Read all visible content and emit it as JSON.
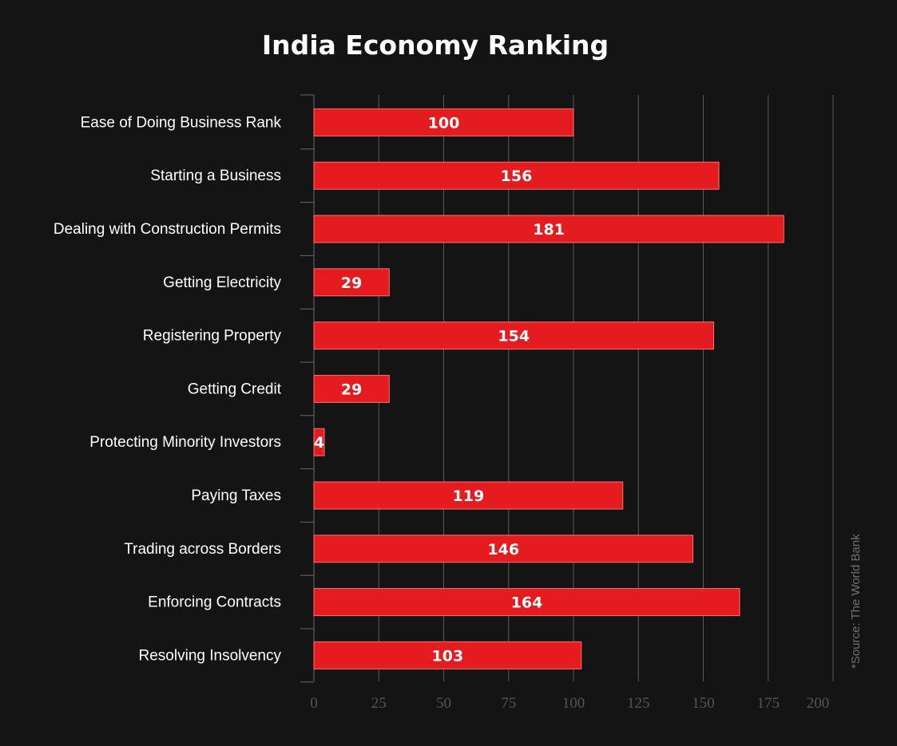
{
  "chart_data": {
    "type": "bar",
    "orientation": "horizontal",
    "title": "India Economy Ranking",
    "categories": [
      "Ease of Doing Business Rank",
      "Starting a Business",
      "Dealing with Construction Permits",
      "Getting Electricity",
      "Registering Property",
      "Getting Credit",
      "Protecting Minority Investors",
      "Paying Taxes",
      "Trading across Borders",
      "Enforcing Contracts",
      "Resolving Insolvency"
    ],
    "values": [
      100,
      156,
      181,
      29,
      154,
      29,
      4,
      119,
      146,
      164,
      103
    ],
    "xlim": [
      0,
      200
    ],
    "x_ticks": [
      0,
      25,
      50,
      75,
      100,
      125,
      150,
      175,
      200
    ],
    "grid": true,
    "legend": "none",
    "source_note": "*Source: The World Bank",
    "colors": {
      "background": "#141414",
      "bar": "#e51c1f",
      "bar_edge": "#ff6f6f",
      "grid": "#5a5a5a",
      "axis": "#6a6a6a",
      "text": "#ffffff",
      "tick_text": "#555555",
      "source_text": "#6f6f6f"
    }
  }
}
